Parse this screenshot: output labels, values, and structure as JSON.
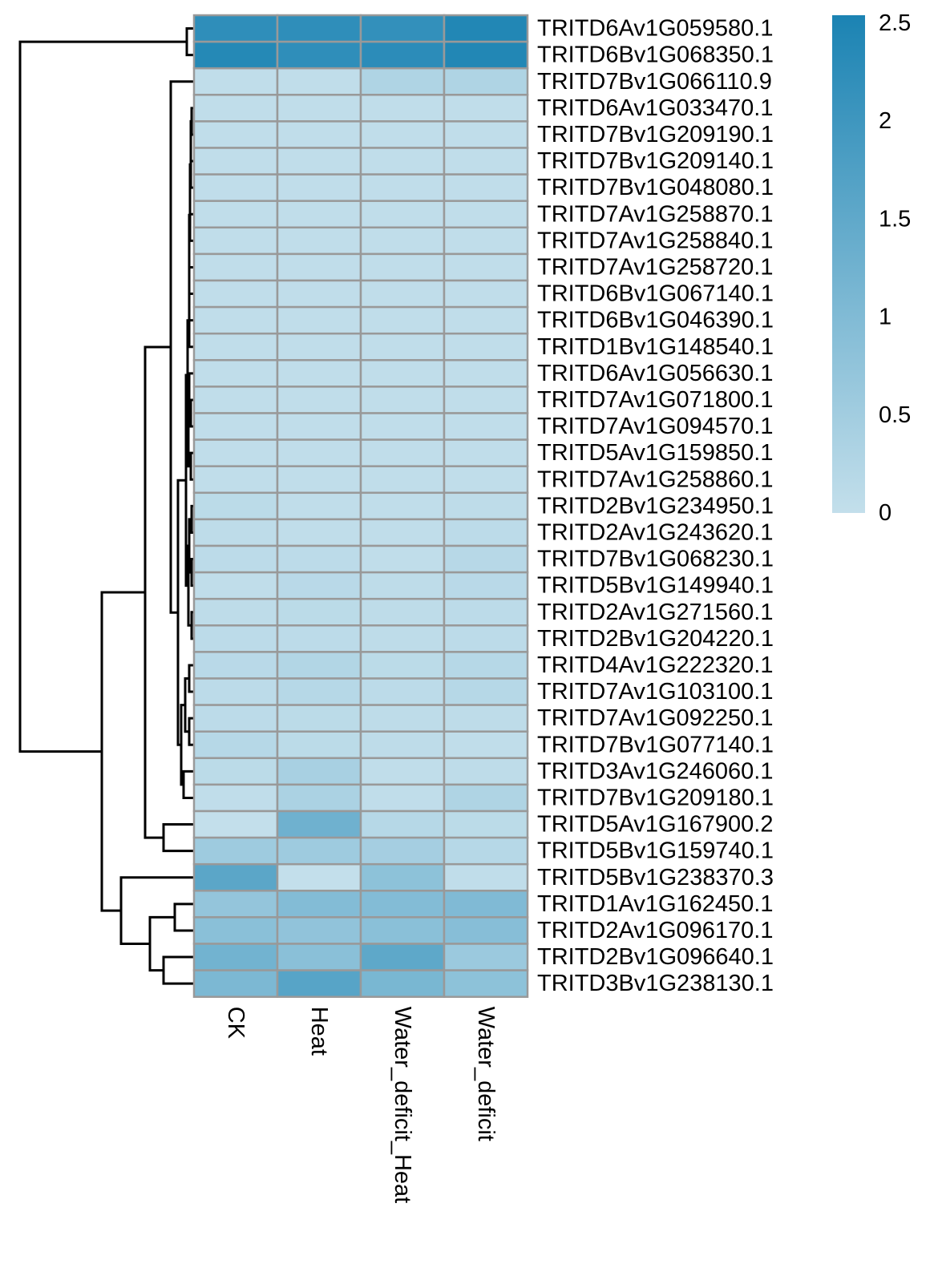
{
  "chart_data": {
    "type": "heatmap",
    "columns": [
      "CK",
      "Heat",
      "Water_deficit_Heat",
      "Water_deficit"
    ],
    "rows": [
      "TRITD6Av1G059580.1",
      "TRITD6Bv1G068350.1",
      "TRITD7Bv1G066110.9",
      "TRITD6Av1G033470.1",
      "TRITD7Bv1G209190.1",
      "TRITD7Bv1G209140.1",
      "TRITD7Bv1G048080.1",
      "TRITD7Av1G258870.1",
      "TRITD7Av1G258840.1",
      "TRITD7Av1G258720.1",
      "TRITD6Bv1G067140.1",
      "TRITD6Bv1G046390.1",
      "TRITD1Bv1G148540.1",
      "TRITD6Av1G056630.1",
      "TRITD7Av1G071800.1",
      "TRITD7Av1G094570.1",
      "TRITD5Av1G159850.1",
      "TRITD7Av1G258860.1",
      "TRITD2Bv1G234950.1",
      "TRITD2Av1G243620.1",
      "TRITD7Bv1G068230.1",
      "TRITD5Bv1G149940.1",
      "TRITD2Av1G271560.1",
      "TRITD2Bv1G204220.1",
      "TRITD4Av1G222320.1",
      "TRITD7Av1G103100.1",
      "TRITD7Av1G092250.1",
      "TRITD7Bv1G077140.1",
      "TRITD3Av1G246060.1",
      "TRITD7Bv1G209180.1",
      "TRITD5Av1G167900.2",
      "TRITD5Bv1G159740.1",
      "TRITD5Bv1G238370.3",
      "TRITD1Av1G162450.1",
      "TRITD2Av1G096170.1",
      "TRITD2Bv1G096640.1",
      "TRITD3Bv1G238130.1"
    ],
    "values": [
      [
        2.2,
        2.2,
        2.15,
        2.4
      ],
      [
        2.35,
        2.2,
        2.25,
        2.4
      ],
      [
        0.05,
        0.05,
        0.3,
        0.3
      ],
      [
        0.05,
        0.05,
        0.05,
        0.05
      ],
      [
        0.05,
        0.05,
        0.05,
        0.05
      ],
      [
        0.05,
        0.05,
        0.05,
        0.05
      ],
      [
        0.05,
        0.05,
        0.05,
        0.05
      ],
      [
        0.05,
        0.05,
        0.05,
        0.05
      ],
      [
        0.05,
        0.05,
        0.05,
        0.05
      ],
      [
        0.05,
        0.05,
        0.05,
        0.05
      ],
      [
        0.05,
        0.05,
        0.05,
        0.05
      ],
      [
        0.05,
        0.05,
        0.05,
        0.05
      ],
      [
        0.05,
        0.05,
        0.05,
        0.05
      ],
      [
        0.05,
        0.05,
        0.05,
        0.05
      ],
      [
        0.05,
        0.05,
        0.05,
        0.05
      ],
      [
        0.05,
        0.05,
        0.05,
        0.05
      ],
      [
        0.05,
        0.05,
        0.05,
        0.05
      ],
      [
        0.05,
        0.05,
        0.05,
        0.05
      ],
      [
        0.12,
        0.05,
        0.05,
        0.08
      ],
      [
        0.08,
        0.05,
        0.05,
        0.1
      ],
      [
        0.1,
        0.1,
        0.05,
        0.18
      ],
      [
        0.05,
        0.15,
        0.08,
        0.15
      ],
      [
        0.08,
        0.12,
        0.08,
        0.1
      ],
      [
        0.1,
        0.1,
        0.08,
        0.1
      ],
      [
        0.15,
        0.25,
        0.12,
        0.2
      ],
      [
        0.1,
        0.2,
        0.1,
        0.2
      ],
      [
        0.1,
        0.12,
        0.08,
        0.08
      ],
      [
        0.2,
        0.12,
        0.08,
        0.05
      ],
      [
        0.12,
        0.4,
        0.05,
        0.08
      ],
      [
        0.05,
        0.35,
        0.05,
        0.3
      ],
      [
        0.0,
        1.25,
        0.2,
        0.12
      ],
      [
        0.55,
        0.55,
        0.45,
        0.2
      ],
      [
        1.55,
        0.0,
        0.8,
        0.05
      ],
      [
        0.7,
        0.95,
        0.95,
        1.0
      ],
      [
        0.85,
        0.75,
        0.85,
        0.9
      ],
      [
        1.2,
        0.85,
        1.5,
        0.6
      ],
      [
        1.05,
        1.6,
        1.1,
        0.8
      ]
    ],
    "colorscale": {
      "min": 0,
      "max": 2.5,
      "low_color": "#c3dfeb",
      "high_color": "#1b83b3"
    },
    "legend": {
      "ticks": [
        "0",
        "0.5",
        "1",
        "1.5",
        "2",
        "2.5"
      ],
      "tick_values": [
        0,
        0.5,
        1,
        1.5,
        2,
        2.5
      ],
      "placement": "top-right"
    },
    "cell_border_color": "#999999",
    "row_dendrogram": true,
    "xlabel": "",
    "ylabel": ""
  }
}
